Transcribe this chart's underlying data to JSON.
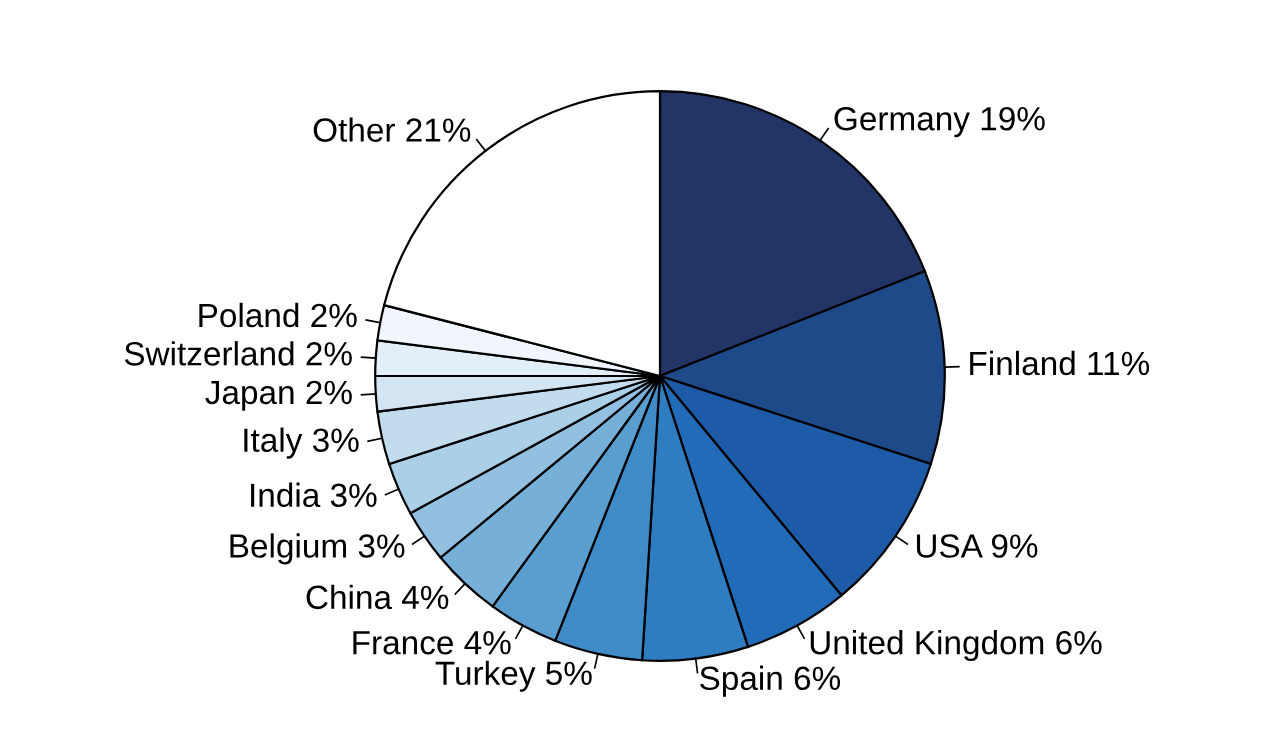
{
  "chart_data": {
    "type": "pie",
    "categories": [
      "Germany",
      "Finland",
      "USA",
      "United Kingdom",
      "Spain",
      "Turkey",
      "France",
      "China",
      "Belgium",
      "India",
      "Italy",
      "Japan",
      "Switzerland",
      "Poland",
      "Other"
    ],
    "values": [
      19,
      11,
      9,
      6,
      6,
      5,
      4,
      4,
      3,
      3,
      3,
      2,
      2,
      2,
      21
    ],
    "value_labels": [
      "19%",
      "11%",
      "9%",
      "6%",
      "6%",
      "5%",
      "4%",
      "4%",
      "3%",
      "3%",
      "3%",
      "2%",
      "2%",
      "2%",
      "21%"
    ],
    "colors": [
      "#233466",
      "#1f4a8a",
      "#1d5aa8",
      "#226bb8",
      "#2f7cc0",
      "#3f8bc8",
      "#5a9ecf",
      "#76afd8",
      "#93c0e0",
      "#aacfe6",
      "#c2dcee",
      "#d3e5f3",
      "#e2eef8",
      "#f0f6fc",
      "#ffffff"
    ]
  }
}
